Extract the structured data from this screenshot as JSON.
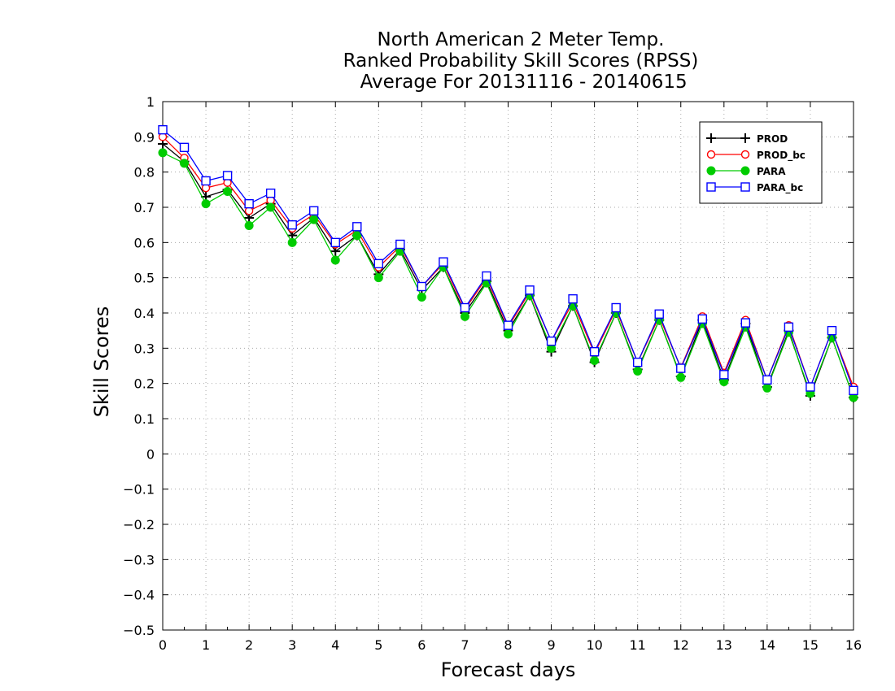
{
  "chart_data": {
    "type": "line",
    "title_lines": [
      "North American 2 Meter Temp.",
      "Ranked Probability Skill Scores (RPSS)",
      " Average For 20131116 - 20140615"
    ],
    "xlabel": "Forecast days",
    "ylabel": "Skill Scores",
    "xlim": [
      0,
      16
    ],
    "ylim": [
      -0.5,
      1
    ],
    "x_ticks": [
      0,
      1,
      2,
      3,
      4,
      5,
      6,
      7,
      8,
      9,
      10,
      11,
      12,
      13,
      14,
      15,
      16
    ],
    "x_tick_labels": [
      "0",
      "1",
      "2",
      "3",
      "4",
      "5",
      "6",
      "7",
      "8",
      "9",
      "10",
      "11",
      "12",
      "13",
      "14",
      "15",
      "16"
    ],
    "y_ticks": [
      -0.5,
      -0.4,
      -0.3,
      -0.2,
      -0.1,
      0,
      0.1,
      0.2,
      0.3,
      0.4,
      0.5,
      0.6,
      0.7,
      0.8,
      0.9,
      1
    ],
    "y_tick_labels": [
      "−0.5",
      "−0.4",
      "−0.3",
      "−0.2",
      "−0.1",
      "0",
      "0.1",
      "0.2",
      "0.3",
      "0.4",
      "0.5",
      "0.6",
      "0.7",
      "0.8",
      "0.9",
      "1"
    ],
    "grid": true,
    "legend_position": "top-right",
    "x": [
      0,
      0.5,
      1,
      1.5,
      2,
      2.5,
      3,
      3.5,
      4,
      4.5,
      5,
      5.5,
      6,
      6.5,
      7,
      7.5,
      8,
      8.5,
      9,
      9.5,
      10,
      10.5,
      11,
      11.5,
      12,
      12.5,
      13,
      13.5,
      14,
      14.5,
      15,
      15.5,
      16
    ],
    "series": [
      {
        "name": "PROD",
        "color": "#000000",
        "marker": "plus",
        "values": [
          0.88,
          0.83,
          0.73,
          0.75,
          0.67,
          0.71,
          0.62,
          0.67,
          0.575,
          0.62,
          0.51,
          0.58,
          0.465,
          0.53,
          0.4,
          0.49,
          0.35,
          0.45,
          0.29,
          0.42,
          0.26,
          0.4,
          0.24,
          0.38,
          0.22,
          0.38,
          0.21,
          0.37,
          0.19,
          0.35,
          0.165,
          0.33,
          0.16
        ]
      },
      {
        "name": "PROD_bc",
        "color": "#ff0000",
        "marker": "circle",
        "values": [
          0.9,
          0.84,
          0.755,
          0.77,
          0.69,
          0.72,
          0.64,
          0.68,
          0.595,
          0.635,
          0.53,
          0.59,
          0.475,
          0.54,
          0.41,
          0.5,
          0.36,
          0.46,
          0.32,
          0.43,
          0.285,
          0.41,
          0.26,
          0.39,
          0.245,
          0.39,
          0.23,
          0.38,
          0.21,
          0.365,
          0.19,
          0.35,
          0.19
        ]
      },
      {
        "name": "PARA",
        "color": "#00cc00",
        "marker": "filled-circle",
        "values": [
          0.855,
          0.825,
          0.71,
          0.745,
          0.648,
          0.7,
          0.6,
          0.665,
          0.55,
          0.62,
          0.5,
          0.575,
          0.445,
          0.53,
          0.39,
          0.485,
          0.34,
          0.45,
          0.3,
          0.42,
          0.265,
          0.4,
          0.235,
          0.38,
          0.217,
          0.37,
          0.205,
          0.36,
          0.187,
          0.345,
          0.172,
          0.33,
          0.16
        ]
      },
      {
        "name": "PARA_bc",
        "color": "#0000ff",
        "marker": "square",
        "values": [
          0.92,
          0.87,
          0.775,
          0.79,
          0.71,
          0.74,
          0.65,
          0.69,
          0.6,
          0.645,
          0.54,
          0.595,
          0.475,
          0.545,
          0.415,
          0.505,
          0.365,
          0.465,
          0.32,
          0.44,
          0.29,
          0.415,
          0.26,
          0.397,
          0.243,
          0.383,
          0.225,
          0.372,
          0.21,
          0.36,
          0.19,
          0.35,
          0.18
        ]
      }
    ]
  }
}
